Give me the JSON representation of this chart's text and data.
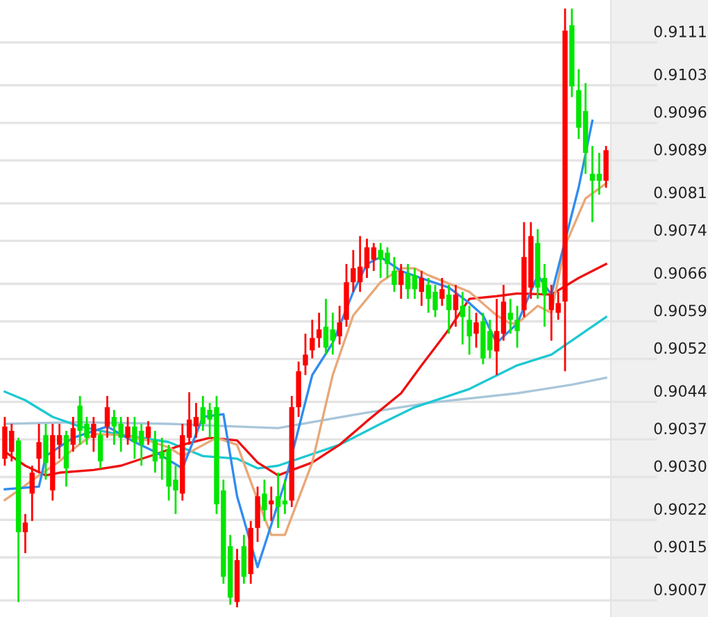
{
  "chart_data": {
    "type": "candlestick",
    "categories": [
      null,
      null,
      null,
      null,
      null,
      null,
      null,
      null,
      null,
      null,
      null,
      null,
      null,
      null,
      null,
      null,
      null,
      null,
      null,
      null,
      null,
      null,
      null,
      null,
      null,
      null,
      null,
      null,
      null,
      null,
      null,
      null,
      null,
      null,
      null,
      null,
      null,
      null,
      null,
      null,
      null,
      null,
      null,
      null,
      null,
      null,
      null,
      null,
      null,
      null,
      null,
      null,
      null,
      null,
      null,
      null,
      null,
      null,
      null,
      null,
      null,
      null,
      null,
      null,
      null,
      null,
      null,
      null,
      null,
      null,
      null,
      null,
      null,
      null,
      null,
      null,
      null,
      null,
      null,
      null,
      null,
      null,
      null,
      null,
      null,
      null,
      null,
      null,
      null
    ],
    "ohlc": [
      [
        0.90334,
        0.90412,
        0.90321,
        0.90394
      ],
      [
        0.90347,
        0.90399,
        0.90329,
        0.90386
      ],
      [
        0.90368,
        0.90373,
        0.90067,
        0.90197
      ],
      [
        0.90197,
        0.90231,
        0.90158,
        0.90215
      ],
      [
        0.90269,
        0.90321,
        0.90218,
        0.90308
      ],
      [
        0.90334,
        0.90399,
        0.90308,
        0.90365
      ],
      [
        0.90378,
        0.90399,
        0.90295,
        0.90326
      ],
      [
        0.90275,
        0.90399,
        0.90256,
        0.90378
      ],
      [
        0.9036,
        0.90399,
        0.90334,
        0.90378
      ],
      [
        0.90378,
        0.90386,
        0.90282,
        0.90316
      ],
      [
        0.9036,
        0.90412,
        0.90347,
        0.90391
      ],
      [
        0.90433,
        0.90451,
        0.9036,
        0.90386
      ],
      [
        0.90399,
        0.90412,
        0.9036,
        0.90373
      ],
      [
        0.90373,
        0.90412,
        0.90347,
        0.90399
      ],
      [
        0.90378,
        0.90386,
        0.90316,
        0.90329
      ],
      [
        0.90394,
        0.90451,
        0.90373,
        0.9043
      ],
      [
        0.90412,
        0.90425,
        0.9036,
        0.90394
      ],
      [
        0.90399,
        0.90412,
        0.90347,
        0.90373
      ],
      [
        0.90373,
        0.90412,
        0.9036,
        0.90394
      ],
      [
        0.90394,
        0.90412,
        0.90334,
        0.90365
      ],
      [
        0.90386,
        0.90399,
        0.90321,
        0.9036
      ],
      [
        0.90373,
        0.90404,
        0.9036,
        0.90394
      ],
      [
        0.90368,
        0.90386,
        0.90308,
        0.90329
      ],
      [
        0.90347,
        0.90373,
        0.90295,
        0.90334
      ],
      [
        0.90352,
        0.9036,
        0.90256,
        0.90282
      ],
      [
        0.90295,
        0.90321,
        0.90231,
        0.90275
      ],
      [
        0.90269,
        0.90399,
        0.90256,
        0.90378
      ],
      [
        0.90373,
        0.90458,
        0.9036,
        0.90407
      ],
      [
        0.90394,
        0.90438,
        0.90373,
        0.90412
      ],
      [
        0.9043,
        0.90451,
        0.90386,
        0.90399
      ],
      [
        0.90425,
        0.90438,
        0.90373,
        0.90407
      ],
      [
        0.9043,
        0.90451,
        0.90231,
        0.90249
      ],
      [
        0.90275,
        0.90295,
        0.90101,
        0.90114
      ],
      [
        0.90171,
        0.90192,
        0.90062,
        0.90075
      ],
      [
        0.90067,
        0.90166,
        0.90057,
        0.90145
      ],
      [
        0.90171,
        0.90192,
        0.90101,
        0.90114
      ],
      [
        0.90119,
        0.90218,
        0.90101,
        0.90205
      ],
      [
        0.90205,
        0.90282,
        0.90179,
        0.90264
      ],
      [
        0.90269,
        0.90295,
        0.90218,
        0.90238
      ],
      [
        0.90249,
        0.90282,
        0.90218,
        0.90256
      ],
      [
        0.90264,
        0.90308,
        0.90205,
        0.90244
      ],
      [
        0.90256,
        0.90295,
        0.90231,
        0.90249
      ],
      [
        0.90256,
        0.90451,
        0.90244,
        0.9043
      ],
      [
        0.9043,
        0.90515,
        0.90412,
        0.90497
      ],
      [
        0.90508,
        0.90567,
        0.9049,
        0.90528
      ],
      [
        0.90536,
        0.90593,
        0.90521,
        0.90559
      ],
      [
        0.90559,
        0.90606,
        0.90541,
        0.90575
      ],
      [
        0.9058,
        0.90632,
        0.90528,
        0.90541
      ],
      [
        0.90575,
        0.90606,
        0.90528,
        0.90554
      ],
      [
        0.90562,
        0.90619,
        0.90547,
        0.90588
      ],
      [
        0.90593,
        0.90697,
        0.9058,
        0.90663
      ],
      [
        0.90663,
        0.90723,
        0.90645,
        0.90689
      ],
      [
        0.90663,
        0.90749,
        0.90645,
        0.90692
      ],
      [
        0.90689,
        0.90744,
        0.90671,
        0.90728
      ],
      [
        0.90705,
        0.90736,
        0.90684,
        0.90728
      ],
      [
        0.90723,
        0.90736,
        0.90671,
        0.90705
      ],
      [
        0.90718,
        0.90728,
        0.90671,
        0.90697
      ],
      [
        0.90684,
        0.9071,
        0.90645,
        0.90658
      ],
      [
        0.90658,
        0.90697,
        0.90632,
        0.90684
      ],
      [
        0.90679,
        0.90697,
        0.90632,
        0.9065
      ],
      [
        0.90676,
        0.90689,
        0.90632,
        0.9065
      ],
      [
        0.90645,
        0.90684,
        0.90619,
        0.90671
      ],
      [
        0.90658,
        0.90671,
        0.90606,
        0.90632
      ],
      [
        0.90645,
        0.90658,
        0.90598,
        0.90611
      ],
      [
        0.90632,
        0.90671,
        0.90619,
        0.9065
      ],
      [
        0.9064,
        0.90658,
        0.90567,
        0.90611
      ],
      [
        0.90611,
        0.90658,
        0.9058,
        0.9064
      ],
      [
        0.90619,
        0.90645,
        0.90547,
        0.90598
      ],
      [
        0.90593,
        0.90619,
        0.90528,
        0.90562
      ],
      [
        0.90567,
        0.90606,
        0.90541,
        0.90588
      ],
      [
        0.9059,
        0.90606,
        0.9051,
        0.90521
      ],
      [
        0.90572,
        0.90593,
        0.90521,
        0.90536
      ],
      [
        0.90534,
        0.90632,
        0.9049,
        0.90572
      ],
      [
        0.90567,
        0.90658,
        0.90554,
        0.90627
      ],
      [
        0.90606,
        0.90632,
        0.90567,
        0.90593
      ],
      [
        0.90593,
        0.90619,
        0.90541,
        0.90572
      ],
      [
        0.90611,
        0.90775,
        0.90598,
        0.9071
      ],
      [
        0.90653,
        0.90775,
        0.90632,
        0.90749
      ],
      [
        0.90736,
        0.90762,
        0.90632,
        0.90653
      ],
      [
        0.90671,
        0.90697,
        0.9058,
        0.9064
      ],
      [
        0.90611,
        0.90658,
        0.90554,
        0.9064
      ],
      [
        0.90606,
        0.90645,
        0.90593,
        0.90624
      ],
      [
        0.90627,
        0.91173,
        0.90497,
        0.91132
      ],
      [
        0.91142,
        0.91173,
        0.91008,
        0.91028
      ],
      [
        0.91021,
        0.9106,
        0.9093,
        0.90951
      ],
      [
        0.90982,
        0.91034,
        0.90865,
        0.90904
      ],
      [
        0.90865,
        0.90917,
        0.90775,
        0.90852
      ],
      [
        0.90865,
        0.90904,
        0.90826,
        0.90852
      ],
      [
        0.90852,
        0.90917,
        0.90839,
        0.90909
      ]
    ],
    "colors": [
      "#ff0000",
      "#ff0000",
      "#00e600",
      "#ff0000",
      "#ff0000",
      "#ff0000",
      "#00e600",
      "#ff0000",
      "#ff0000",
      "#00e600",
      "#ff0000",
      "#00e600",
      "#00e600",
      "#ff0000",
      "#00e600",
      "#ff0000",
      "#00e600",
      "#00e600",
      "#ff0000",
      "#00e600",
      "#00e600",
      "#ff0000",
      "#00e600",
      "#00e600",
      "#00e600",
      "#00e600",
      "#ff0000",
      "#ff0000",
      "#ff0000",
      "#00e600",
      "#00e600",
      "#00e600",
      "#00e600",
      "#00e600",
      "#ff0000",
      "#00e600",
      "#ff0000",
      "#ff0000",
      "#00e600",
      "#ff0000",
      "#00e600",
      "#00e600",
      "#ff0000",
      "#ff0000",
      "#ff0000",
      "#ff0000",
      "#ff0000",
      "#00e600",
      "#00e600",
      "#ff0000",
      "#ff0000",
      "#ff0000",
      "#ff0000",
      "#ff0000",
      "#ff0000",
      "#00e600",
      "#00e600",
      "#00e600",
      "#ff0000",
      "#00e600",
      "#00e600",
      "#ff0000",
      "#00e600",
      "#00e600",
      "#ff0000",
      "#00e600",
      "#ff0000",
      "#00e600",
      "#00e600",
      "#ff0000",
      "#00e600",
      "#00e600",
      "#ff0000",
      "#ff0000",
      "#00e600",
      "#00e600",
      "#ff0000",
      "#ff0000",
      "#00e600",
      "#00e600",
      "#ff0000",
      "#ff0000",
      "#ff0000",
      "#00e600",
      "#00e600",
      "#00e600",
      "#00e600",
      "#00e600",
      "#ff0000"
    ],
    "series": [
      {
        "type": "line",
        "color": "#a9c6da",
        "values": [
          0.90399,
          null,
          null,
          null,
          null,
          null,
          null,
          null,
          null,
          null,
          null,
          0.90402,
          null,
          null,
          null,
          null,
          null,
          null,
          null,
          null,
          null,
          null,
          null,
          null,
          0.90399,
          null,
          null,
          null,
          null,
          null,
          null,
          null,
          null,
          null,
          0.90394,
          null,
          null,
          null,
          null,
          null,
          0.90391,
          null,
          null,
          null,
          null,
          null,
          null,
          null,
          null,
          null,
          null,
          null,
          null,
          0.9042,
          null,
          null,
          null,
          null,
          null,
          null,
          null,
          null,
          0.90438,
          null,
          null,
          null,
          null,
          null,
          null,
          null,
          null,
          null,
          null,
          null,
          null,
          0.90456,
          null,
          null,
          null,
          null,
          null,
          null,
          null,
          0.90472,
          null,
          null,
          null,
          null,
          0.90485
        ]
      },
      {
        "type": "line",
        "color": "#1ec8d2",
        "values": [
          0.90459,
          null,
          null,
          0.90443,
          null,
          null,
          null,
          0.90412,
          null,
          null,
          null,
          0.90394,
          null,
          null,
          null,
          null,
          0.90381,
          null,
          null,
          null,
          null,
          null,
          null,
          null,
          0.90365,
          null,
          null,
          null,
          null,
          0.90339,
          null,
          null,
          null,
          null,
          0.90334,
          null,
          null,
          0.90316,
          null,
          null,
          0.90321,
          null,
          null,
          null,
          null,
          null,
          null,
          null,
          null,
          0.9036,
          null,
          null,
          null,
          null,
          null,
          0.90399,
          null,
          null,
          null,
          null,
          0.9043,
          null,
          null,
          null,
          null,
          null,
          null,
          null,
          0.90464,
          null,
          null,
          null,
          null,
          null,
          null,
          0.90508,
          null,
          null,
          null,
          null,
          0.90528,
          null,
          null,
          null,
          null,
          null,
          null,
          null,
          0.90598
        ]
      },
      {
        "type": "line",
        "color": "#ee1111",
        "values": [
          0.90347,
          null,
          null,
          0.90321,
          null,
          null,
          0.90303,
          null,
          0.90308,
          null,
          null,
          null,
          null,
          0.90313,
          null,
          null,
          null,
          0.90321,
          null,
          null,
          null,
          null,
          0.90342,
          null,
          null,
          null,
          0.9036,
          null,
          null,
          null,
          0.90373,
          null,
          null,
          null,
          0.90368,
          null,
          null,
          0.90327,
          null,
          null,
          0.90303,
          null,
          null,
          null,
          null,
          0.90327,
          null,
          null,
          null,
          0.9036,
          null,
          null,
          null,
          0.90404,
          null,
          null,
          null,
          null,
          0.90456,
          null,
          null,
          0.90508,
          null,
          null,
          null,
          0.90575,
          null,
          null,
          0.90632,
          null,
          null,
          null,
          0.90637,
          null,
          null,
          0.90642,
          null,
          null,
          null,
          null,
          0.9064,
          null,
          null,
          null,
          0.90671,
          null,
          null,
          null,
          0.90697
        ]
      },
      {
        "type": "line",
        "color": "#e8a878",
        "values": [
          0.90257,
          null,
          0.90275,
          null,
          null,
          0.90303,
          null,
          null,
          0.90329,
          null,
          0.90352,
          null,
          null,
          0.9038,
          null,
          null,
          null,
          0.90378,
          null,
          null,
          null,
          0.90368,
          null,
          null,
          0.90355,
          null,
          0.90339,
          null,
          null,
          null,
          null,
          0.90373,
          null,
          null,
          0.9036,
          null,
          null,
          0.90257,
          null,
          0.90192,
          null,
          0.90192,
          null,
          null,
          null,
          0.90327,
          null,
          null,
          0.9049,
          null,
          null,
          0.90601,
          null,
          null,
          null,
          0.90663,
          null,
          null,
          0.90689,
          null,
          0.90689,
          null,
          0.90676,
          null,
          null,
          null,
          null,
          null,
          0.90645,
          null,
          null,
          null,
          0.90601,
          null,
          0.90586,
          0.90586,
          null,
          null,
          0.90619,
          null,
          0.90606,
          null,
          0.90731,
          null,
          null,
          0.90819,
          null,
          null,
          0.90847
        ]
      },
      {
        "type": "line",
        "color": "#2f8cf0",
        "values": [
          0.90277,
          null,
          null,
          null,
          null,
          0.90282,
          0.90339,
          null,
          null,
          null,
          0.90373,
          null,
          null,
          null,
          null,
          0.90394,
          null,
          null,
          null,
          0.90365,
          null,
          null,
          0.90347,
          null,
          null,
          null,
          0.90316,
          null,
          null,
          0.90412,
          null,
          null,
          0.90417,
          null,
          0.90264,
          null,
          null,
          0.90132,
          null,
          null,
          null,
          0.9029,
          null,
          null,
          null,
          0.9049,
          null,
          null,
          0.9055,
          null,
          null,
          0.90645,
          null,
          0.90697,
          null,
          0.9071,
          null,
          null,
          0.90684,
          null,
          null,
          null,
          0.90666,
          null,
          null,
          0.90653,
          null,
          null,
          0.90624,
          null,
          0.90601,
          null,
          0.9055,
          null,
          null,
          0.90586,
          null,
          null,
          0.90676,
          null,
          0.9064,
          null,
          null,
          null,
          0.9084,
          null,
          0.90964,
          null,
          null
        ]
      }
    ],
    "ylim": [
      0.90039,
      0.91189
    ],
    "yticks": [
      {
        "value": 0.9007,
        "label": "0.9007"
      },
      {
        "value": 0.9015,
        "label": "0.9015"
      },
      {
        "value": 0.9022,
        "label": "0.9022"
      },
      {
        "value": 0.903,
        "label": "0.9030"
      },
      {
        "value": 0.9037,
        "label": "0.9037"
      },
      {
        "value": 0.9044,
        "label": "0.9044"
      },
      {
        "value": 0.9052,
        "label": "0.9052"
      },
      {
        "value": 0.9059,
        "label": "0.9059"
      },
      {
        "value": 0.9066,
        "label": "0.9066"
      },
      {
        "value": 0.9074,
        "label": "0.9074"
      },
      {
        "value": 0.9081,
        "label": "0.9081"
      },
      {
        "value": 0.9089,
        "label": "0.9089"
      },
      {
        "value": 0.9096,
        "label": "0.9096"
      },
      {
        "value": 0.9103,
        "label": "0.9103"
      },
      {
        "value": 0.9111,
        "label": "0.9111"
      }
    ],
    "grid": "y",
    "tick_labels": "y"
  }
}
